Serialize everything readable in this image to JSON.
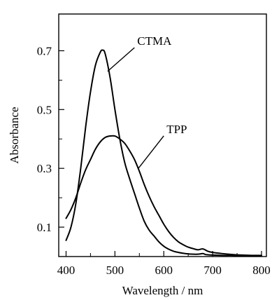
{
  "chart_data": {
    "type": "line",
    "title": "",
    "xlabel": "Wavelength / nm",
    "ylabel": "Absorbance",
    "xlim": [
      385,
      810
    ],
    "ylim": [
      0.0,
      0.825
    ],
    "xticks": [
      400,
      500,
      600,
      700,
      800
    ],
    "yticks": [
      0.1,
      0.3,
      0.5,
      0.7
    ],
    "yticks_minor": [
      0.2,
      0.4,
      0.6
    ],
    "xticks_minor": [
      450,
      550,
      650,
      750
    ],
    "grid": false,
    "legend": "none",
    "series": [
      {
        "name": "CTMA",
        "x": [
          400,
          410,
          420,
          430,
          440,
          450,
          460,
          470,
          475,
          480,
          490,
          500,
          510,
          520,
          530,
          540,
          550,
          560,
          570,
          580,
          590,
          600,
          610,
          620,
          630,
          640,
          650,
          660,
          670,
          680,
          685,
          690,
          700,
          720,
          740,
          760,
          780,
          800
        ],
        "y": [
          0.055,
          0.1,
          0.18,
          0.3,
          0.44,
          0.56,
          0.65,
          0.695,
          0.702,
          0.69,
          0.61,
          0.5,
          0.4,
          0.32,
          0.265,
          0.215,
          0.165,
          0.12,
          0.09,
          0.07,
          0.05,
          0.035,
          0.025,
          0.018,
          0.014,
          0.011,
          0.009,
          0.008,
          0.008,
          0.01,
          0.007,
          0.006,
          0.005,
          0.004,
          0.004,
          0.003,
          0.003,
          0.003
        ]
      },
      {
        "name": "TPP",
        "x": [
          400,
          410,
          420,
          430,
          440,
          450,
          460,
          470,
          480,
          490,
          500,
          510,
          520,
          530,
          540,
          550,
          560,
          570,
          580,
          590,
          600,
          610,
          620,
          630,
          640,
          650,
          660,
          670,
          680,
          690,
          700,
          720,
          740,
          760,
          780,
          800
        ],
        "y": [
          0.13,
          0.16,
          0.2,
          0.25,
          0.295,
          0.33,
          0.365,
          0.39,
          0.405,
          0.41,
          0.41,
          0.4,
          0.385,
          0.36,
          0.33,
          0.29,
          0.245,
          0.205,
          0.17,
          0.14,
          0.11,
          0.085,
          0.065,
          0.05,
          0.04,
          0.032,
          0.027,
          0.023,
          0.026,
          0.018,
          0.014,
          0.01,
          0.007,
          0.005,
          0.004,
          0.004
        ]
      }
    ],
    "annotations": [
      {
        "text": "CTMA",
        "series": 0,
        "x": 485,
        "y": 0.63,
        "text_x": 560,
        "text_y": 0.72
      },
      {
        "text": "TPP",
        "series": 1,
        "x": 548,
        "y": 0.3,
        "text_x": 620,
        "text_y": 0.42
      }
    ]
  }
}
